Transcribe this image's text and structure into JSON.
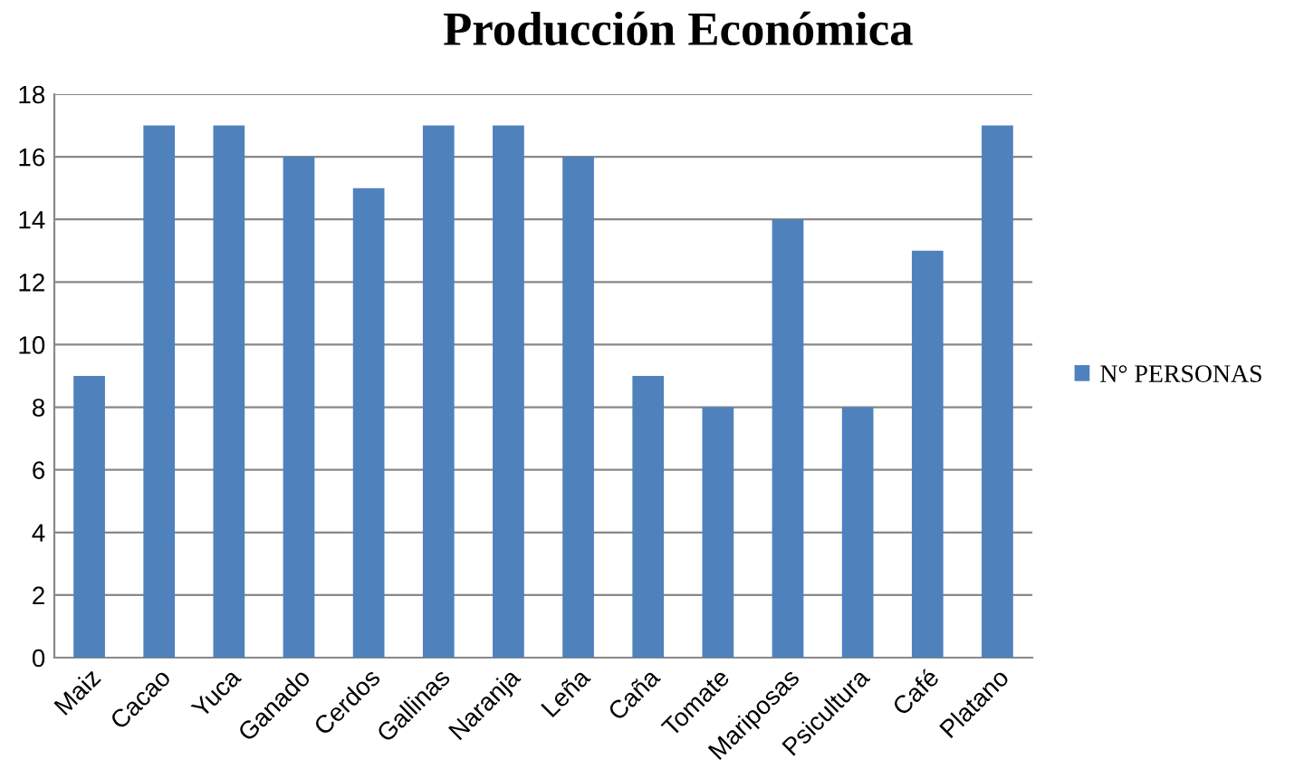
{
  "chart_data": {
    "type": "bar",
    "title": "Producción Económica",
    "categories": [
      "Maiz",
      "Cacao",
      "Yuca",
      "Ganado",
      "Cerdos",
      "Gallinas",
      "Naranja",
      "Leña",
      "Caña",
      "Tomate",
      "Mariposas",
      "Psicultura",
      "Café",
      "Platano"
    ],
    "series": [
      {
        "name": "N° PERSONAS",
        "color": "#4f81bd",
        "values": [
          9,
          17,
          17,
          16,
          15,
          17,
          17,
          16,
          9,
          8,
          14,
          8,
          13,
          17
        ]
      }
    ],
    "ylim": [
      0,
      18
    ],
    "yticks": [
      0,
      2,
      4,
      6,
      8,
      10,
      12,
      14,
      16,
      18
    ],
    "grid": "y",
    "legend": "right"
  }
}
